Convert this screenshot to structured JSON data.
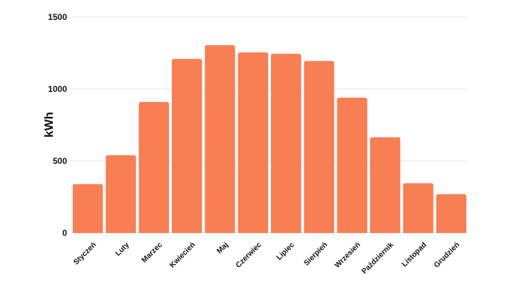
{
  "chart_data": {
    "type": "bar",
    "title": "",
    "xlabel": "",
    "ylabel": "kWh",
    "ylim": [
      0,
      1500
    ],
    "yticks": [
      0,
      500,
      1000,
      1500
    ],
    "grid": true,
    "legend": "none",
    "bar_color": "#f77f53",
    "categories": [
      "Styczeń",
      "Luty",
      "Marzec",
      "Kwiecień",
      "Maj",
      "Czerwiec",
      "Lipiec",
      "Sierpień",
      "Wrzesień",
      "Październik",
      "Listopad",
      "Grudzień"
    ],
    "values": [
      340,
      540,
      910,
      1210,
      1305,
      1255,
      1245,
      1195,
      940,
      665,
      345,
      270
    ]
  }
}
